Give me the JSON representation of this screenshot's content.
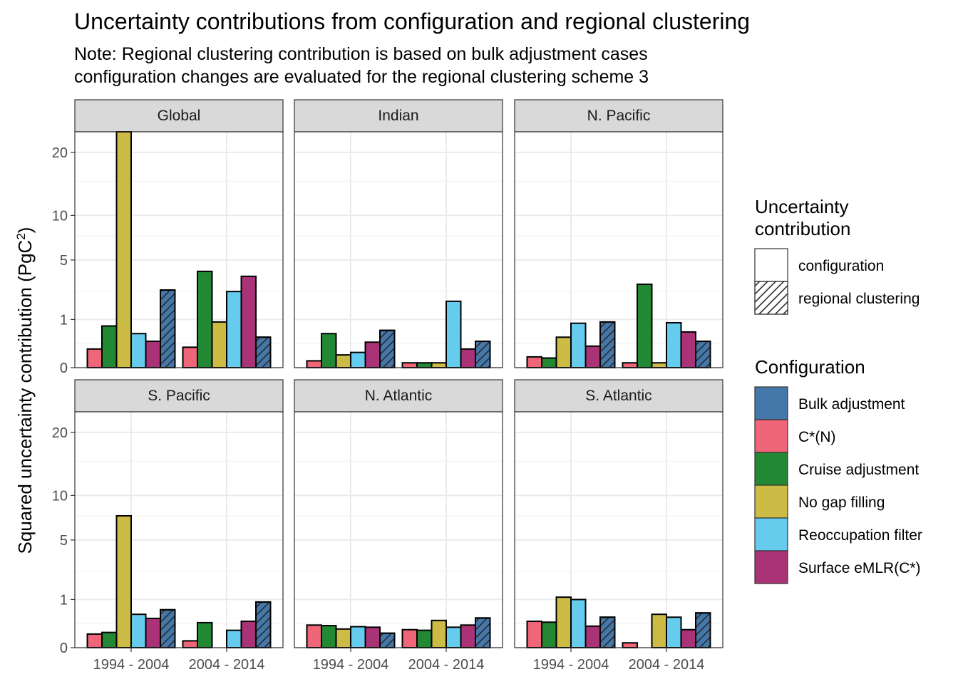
{
  "title": "Uncertainty contributions from configuration and regional clustering",
  "subtitle_line1": "Note: Regional clustering contribution is based on bulk adjustment cases",
  "subtitle_line2": "configuration changes are evaluated for the regional clustering scheme 3",
  "chart_data": {
    "type": "bar",
    "ylabel": "Squared uncertainty contribution (PgC²)",
    "ylabel_main": "Squared uncertainty contribution (PgC",
    "ylabel_sup": "2",
    "ylabel_end": ")",
    "y_scale": "sqrt",
    "ylim": [
      0,
      24
    ],
    "y_ticks": [
      0,
      1,
      5,
      10,
      20
    ],
    "y_tick_labels": [
      "0",
      "1",
      "5",
      "10",
      "20"
    ],
    "grid": true,
    "categories": [
      "1994 - 2004",
      "2004 - 2014"
    ],
    "legend_position": "right",
    "legend_fill": {
      "title_line1": "Uncertainty",
      "title_line2": "contribution",
      "items": [
        {
          "label": "configuration",
          "pattern": "none"
        },
        {
          "label": "regional clustering",
          "pattern": "hatch"
        }
      ]
    },
    "legend_config": {
      "title": "Configuration",
      "items": [
        {
          "label": "Bulk adjustment",
          "color": "#4477AA"
        },
        {
          "label": "C*(N)",
          "color": "#EE6677"
        },
        {
          "label": "Cruise adjustment",
          "color": "#228833"
        },
        {
          "label": "No gap filling",
          "color": "#CCBB44"
        },
        {
          "label": "Reoccupation filter",
          "color": "#66CCEE"
        },
        {
          "label": "Surface eMLR(C*)",
          "color": "#AA3377"
        }
      ]
    },
    "bar_order": [
      "C*(N)",
      "Cruise adjustment",
      "No gap filling",
      "Reoccupation filter",
      "Surface eMLR(C*)",
      "Bulk adjustment"
    ],
    "hatched_series": "Bulk adjustment",
    "panels": [
      {
        "name": "Global",
        "values": [
          [
            0.15,
            0.75,
            26,
            0.5,
            0.3,
            2.6
          ],
          [
            0.18,
            4.0,
            0.9,
            2.5,
            3.6,
            0.4
          ]
        ]
      },
      {
        "name": "Indian",
        "values": [
          [
            0.02,
            0.5,
            0.07,
            0.1,
            0.28,
            0.6
          ],
          [
            0.01,
            0.01,
            0.01,
            1.9,
            0.15,
            0.3
          ]
        ]
      },
      {
        "name": "N. Pacific",
        "values": [
          [
            0.05,
            0.04,
            0.4,
            0.85,
            0.2,
            0.9
          ],
          [
            0.01,
            3.0,
            0.01,
            0.87,
            0.55,
            0.3
          ]
        ]
      },
      {
        "name": "S. Pacific",
        "values": [
          [
            0.08,
            0.1,
            7.5,
            0.48,
            0.37,
            0.62
          ],
          [
            0.02,
            0.27,
            0.0,
            0.13,
            0.3,
            0.9
          ]
        ]
      },
      {
        "name": "N. Atlantic",
        "values": [
          [
            0.22,
            0.21,
            0.15,
            0.19,
            0.18,
            0.09
          ],
          [
            0.14,
            0.13,
            0.32,
            0.18,
            0.22,
            0.38
          ]
        ]
      },
      {
        "name": "S. Atlantic",
        "values": [
          [
            0.3,
            0.28,
            1.1,
            1.0,
            0.2,
            0.4
          ],
          [
            0.01,
            0.0,
            0.48,
            0.4,
            0.14,
            0.52
          ]
        ]
      }
    ]
  }
}
